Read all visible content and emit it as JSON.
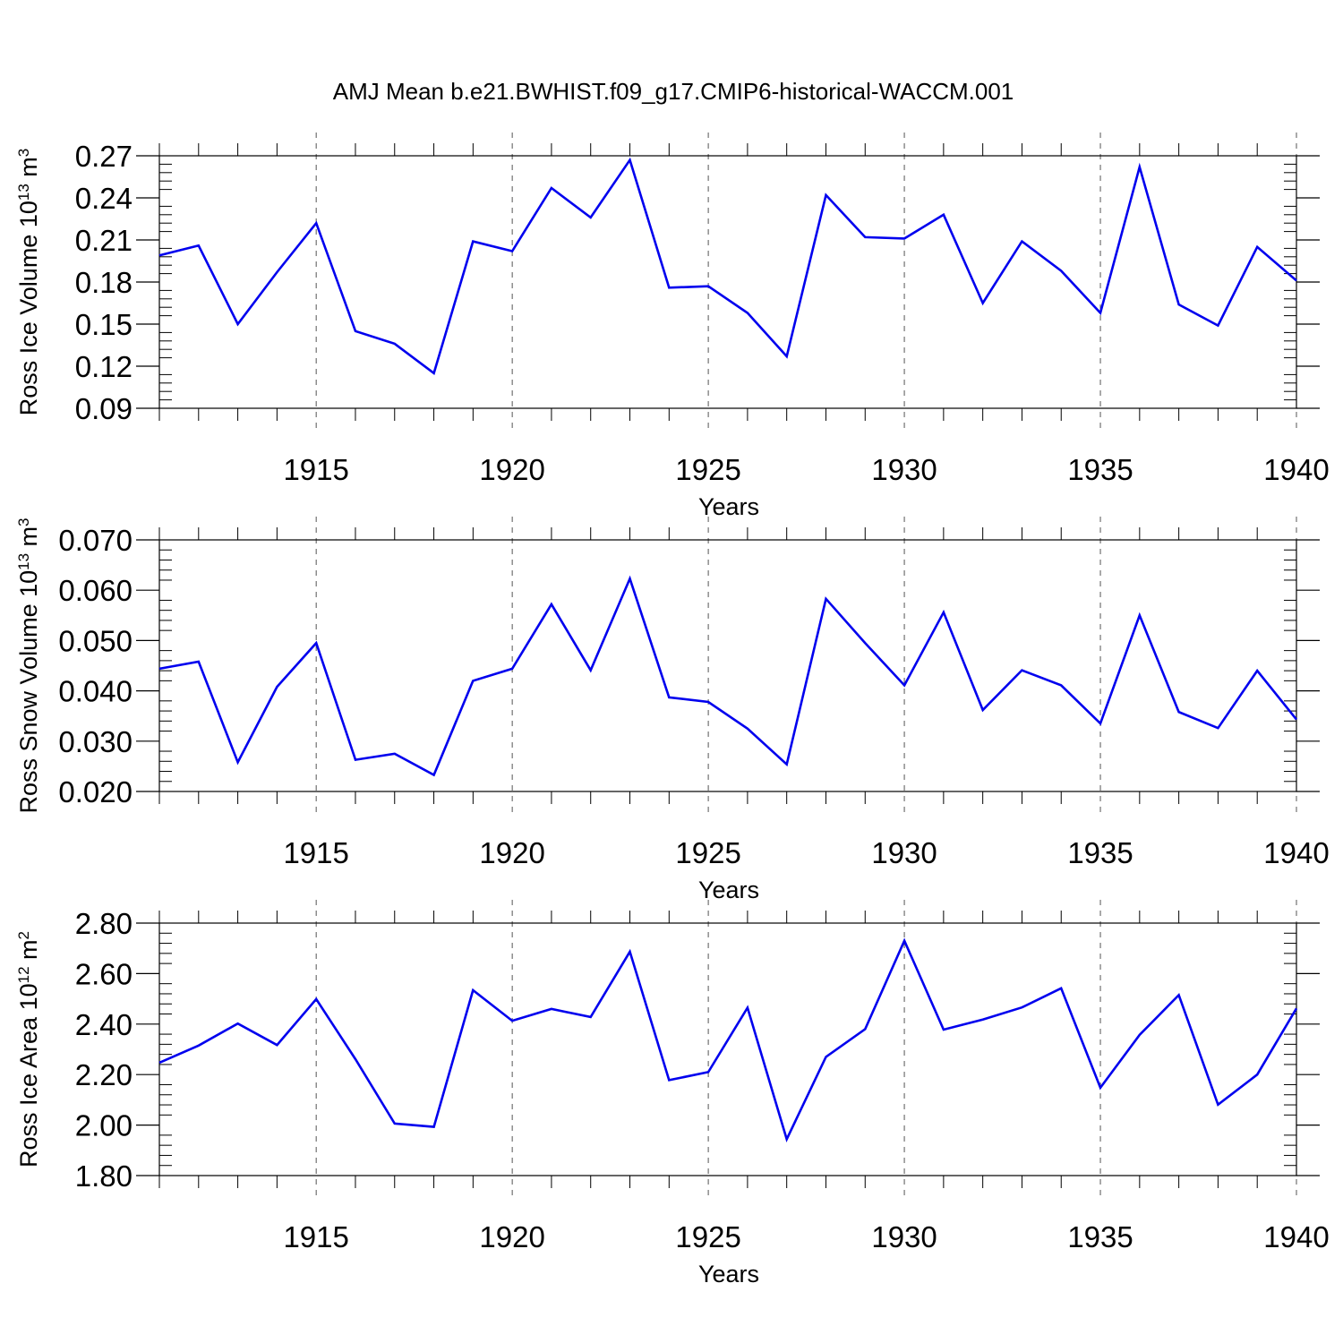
{
  "title": "AMJ Mean b.e21.BWHIST.f09_g17.CMIP6-historical-WACCM.001",
  "series_color": "#0000ee",
  "chart_data": [
    {
      "type": "line",
      "xlabel": "Years",
      "ylabel": "Ross Ice Volume 10¹³ m³",
      "ylabel_main": "Ross Ice Volume 10",
      "ylabel_exp": "13",
      "ylabel_unit": " m",
      "ylabel_unit_exp": "3",
      "xlim": [
        1911,
        1940
      ],
      "ylim": [
        0.09,
        0.27
      ],
      "xticks": [
        1915,
        1920,
        1925,
        1930,
        1935,
        1940
      ],
      "yticks": [
        "0.09",
        "0.12",
        "0.15",
        "0.18",
        "0.21",
        "0.24",
        "0.27"
      ],
      "grid": "vertical dashed at labeled years",
      "x": [
        1911,
        1912,
        1913,
        1914,
        1915,
        1916,
        1917,
        1918,
        1919,
        1920,
        1921,
        1922,
        1923,
        1924,
        1925,
        1926,
        1927,
        1928,
        1929,
        1930,
        1931,
        1932,
        1933,
        1934,
        1935,
        1936,
        1937,
        1938,
        1939,
        1940
      ],
      "values": [
        0.199,
        0.206,
        0.15,
        0.187,
        0.222,
        0.145,
        0.136,
        0.115,
        0.209,
        0.202,
        0.247,
        0.226,
        0.267,
        0.176,
        0.177,
        0.158,
        0.127,
        0.242,
        0.212,
        0.211,
        0.228,
        0.165,
        0.209,
        0.188,
        0.158,
        0.262,
        0.164,
        0.149,
        0.205,
        0.181
      ]
    },
    {
      "type": "line",
      "xlabel": "Years",
      "ylabel": "Ross Snow Volume 10¹³ m³",
      "ylabel_main": "Ross Snow Volume 10",
      "ylabel_exp": "13",
      "ylabel_unit": " m",
      "ylabel_unit_exp": "3",
      "xlim": [
        1911,
        1940
      ],
      "ylim": [
        0.02,
        0.07
      ],
      "xticks": [
        1915,
        1920,
        1925,
        1930,
        1935,
        1940
      ],
      "yticks": [
        "0.020",
        "0.030",
        "0.040",
        "0.050",
        "0.060",
        "0.070"
      ],
      "grid": "vertical dashed at labeled years",
      "x": [
        1911,
        1912,
        1913,
        1914,
        1915,
        1916,
        1917,
        1918,
        1919,
        1920,
        1921,
        1922,
        1923,
        1924,
        1925,
        1926,
        1927,
        1928,
        1929,
        1930,
        1931,
        1932,
        1933,
        1934,
        1935,
        1936,
        1937,
        1938,
        1939,
        1940
      ],
      "values": [
        0.0444,
        0.0458,
        0.0258,
        0.0408,
        0.0495,
        0.0263,
        0.0275,
        0.0233,
        0.042,
        0.0444,
        0.0572,
        0.0441,
        0.0623,
        0.0387,
        0.0378,
        0.0325,
        0.0254,
        0.0583,
        0.0495,
        0.0411,
        0.0556,
        0.0362,
        0.0441,
        0.0411,
        0.0335,
        0.055,
        0.0358,
        0.0326,
        0.044,
        0.0343
      ]
    },
    {
      "type": "line",
      "xlabel": "Years",
      "ylabel": "Ross Ice Area 10¹² m²",
      "ylabel_main": "Ross Ice Area 10",
      "ylabel_exp": "12",
      "ylabel_unit": " m",
      "ylabel_unit_exp": "2",
      "xlim": [
        1911,
        1940
      ],
      "ylim": [
        1.8,
        2.8
      ],
      "xticks": [
        1915,
        1920,
        1925,
        1930,
        1935,
        1940
      ],
      "yticks": [
        "1.80",
        "2.00",
        "2.20",
        "2.40",
        "2.60",
        "2.80"
      ],
      "grid": "vertical dashed at labeled years",
      "x": [
        1911,
        1912,
        1913,
        1914,
        1915,
        1916,
        1917,
        1918,
        1919,
        1920,
        1921,
        1922,
        1923,
        1924,
        1925,
        1926,
        1927,
        1928,
        1929,
        1930,
        1931,
        1932,
        1933,
        1934,
        1935,
        1936,
        1937,
        1938,
        1939,
        1940
      ],
      "values": [
        2.247,
        2.315,
        2.402,
        2.317,
        2.499,
        2.261,
        2.006,
        1.993,
        2.534,
        2.413,
        2.46,
        2.428,
        2.687,
        2.178,
        2.21,
        2.465,
        1.944,
        2.27,
        2.38,
        2.73,
        2.378,
        2.418,
        2.466,
        2.542,
        2.148,
        2.357,
        2.515,
        2.081,
        2.2,
        2.462
      ]
    }
  ]
}
